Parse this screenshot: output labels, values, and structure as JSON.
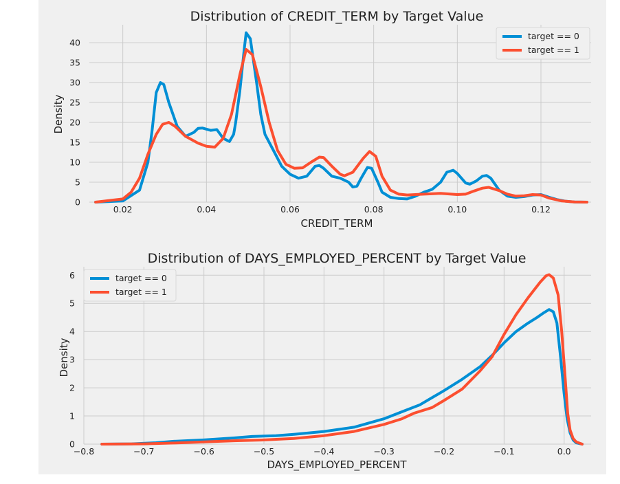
{
  "chart_data": [
    {
      "type": "line",
      "title": "Distribution of CREDIT_TERM by Target Value",
      "xlabel": "CREDIT_TERM",
      "ylabel": "Density",
      "xlim": [
        0.012,
        0.132
      ],
      "ylim": [
        0,
        44.5
      ],
      "xticks": [
        0.02,
        0.04,
        0.06,
        0.08,
        0.1,
        0.12
      ],
      "xtick_labels": [
        "0.02",
        "0.04",
        "0.06",
        "0.08",
        "0.10",
        "0.12"
      ],
      "yticks": [
        0,
        5,
        10,
        15,
        20,
        25,
        30,
        35,
        40
      ],
      "ytick_labels": [
        "0",
        "5",
        "10",
        "15",
        "20",
        "25",
        "30",
        "35",
        "40"
      ],
      "grid": true,
      "legend_position": "top-right",
      "series": [
        {
          "name": "target == 0",
          "color": "#008fd5",
          "points": [
            [
              0.0135,
              0
            ],
            [
              0.02,
              0.3
            ],
            [
              0.024,
              3
            ],
            [
              0.026,
              10
            ],
            [
              0.027,
              18
            ],
            [
              0.028,
              27.5
            ],
            [
              0.029,
              30
            ],
            [
              0.0298,
              29.5
            ],
            [
              0.031,
              25
            ],
            [
              0.033,
              19
            ],
            [
              0.035,
              16.5
            ],
            [
              0.037,
              17.5
            ],
            [
              0.038,
              18.5
            ],
            [
              0.039,
              18.6
            ],
            [
              0.041,
              18
            ],
            [
              0.0425,
              18.2
            ],
            [
              0.044,
              16
            ],
            [
              0.0455,
              15.2
            ],
            [
              0.0465,
              17
            ],
            [
              0.047,
              20
            ],
            [
              0.048,
              28
            ],
            [
              0.049,
              38
            ],
            [
              0.0495,
              42.5
            ],
            [
              0.0505,
              41
            ],
            [
              0.052,
              30
            ],
            [
              0.053,
              22
            ],
            [
              0.054,
              17
            ],
            [
              0.056,
              13
            ],
            [
              0.058,
              9
            ],
            [
              0.06,
              7
            ],
            [
              0.062,
              6
            ],
            [
              0.064,
              6.5
            ],
            [
              0.066,
              9
            ],
            [
              0.067,
              9.2
            ],
            [
              0.068,
              8.5
            ],
            [
              0.07,
              6.5
            ],
            [
              0.072,
              6
            ],
            [
              0.074,
              5
            ],
            [
              0.075,
              3.8
            ],
            [
              0.076,
              4
            ],
            [
              0.077,
              6
            ],
            [
              0.0785,
              8.7
            ],
            [
              0.0795,
              8.5
            ],
            [
              0.081,
              5
            ],
            [
              0.082,
              2.5
            ],
            [
              0.084,
              1.2
            ],
            [
              0.086,
              0.9
            ],
            [
              0.088,
              0.8
            ],
            [
              0.09,
              1.5
            ],
            [
              0.092,
              2.5
            ],
            [
              0.094,
              3.2
            ],
            [
              0.096,
              5
            ],
            [
              0.0975,
              7.5
            ],
            [
              0.099,
              8
            ],
            [
              0.1,
              7.2
            ],
            [
              0.102,
              4.8
            ],
            [
              0.103,
              4.5
            ],
            [
              0.1045,
              5.3
            ],
            [
              0.106,
              6.5
            ],
            [
              0.107,
              6.7
            ],
            [
              0.108,
              6
            ],
            [
              0.11,
              3
            ],
            [
              0.112,
              1.5
            ],
            [
              0.114,
              1.2
            ],
            [
              0.116,
              1.4
            ],
            [
              0.118,
              1.8
            ],
            [
              0.12,
              1.9
            ],
            [
              0.122,
              1.2
            ],
            [
              0.124,
              0.6
            ],
            [
              0.126,
              0.2
            ],
            [
              0.128,
              0.05
            ],
            [
              0.131,
              0
            ]
          ]
        },
        {
          "name": "target == 1",
          "color": "#fc4f30",
          "points": [
            [
              0.0135,
              0
            ],
            [
              0.02,
              0.8
            ],
            [
              0.022,
              2.5
            ],
            [
              0.024,
              6
            ],
            [
              0.026,
              12
            ],
            [
              0.028,
              17
            ],
            [
              0.0295,
              19.5
            ],
            [
              0.031,
              20
            ],
            [
              0.0325,
              19
            ],
            [
              0.035,
              16.5
            ],
            [
              0.038,
              14.8
            ],
            [
              0.04,
              14
            ],
            [
              0.042,
              13.8
            ],
            [
              0.044,
              16
            ],
            [
              0.046,
              22
            ],
            [
              0.048,
              32
            ],
            [
              0.0495,
              38.3
            ],
            [
              0.051,
              37
            ],
            [
              0.053,
              29
            ],
            [
              0.055,
              20
            ],
            [
              0.057,
              13
            ],
            [
              0.059,
              9.5
            ],
            [
              0.061,
              8.5
            ],
            [
              0.063,
              8.6
            ],
            [
              0.065,
              10
            ],
            [
              0.067,
              11.3
            ],
            [
              0.068,
              11.2
            ],
            [
              0.07,
              9
            ],
            [
              0.072,
              7
            ],
            [
              0.073,
              6.6
            ],
            [
              0.075,
              7.5
            ],
            [
              0.0775,
              11
            ],
            [
              0.079,
              12.7
            ],
            [
              0.0805,
              11.5
            ],
            [
              0.082,
              6.5
            ],
            [
              0.084,
              3
            ],
            [
              0.086,
              2
            ],
            [
              0.088,
              1.8
            ],
            [
              0.092,
              2
            ],
            [
              0.096,
              2.2
            ],
            [
              0.1,
              1.9
            ],
            [
              0.102,
              2
            ],
            [
              0.104,
              2.8
            ],
            [
              0.106,
              3.5
            ],
            [
              0.1075,
              3.7
            ],
            [
              0.11,
              2.9
            ],
            [
              0.112,
              2
            ],
            [
              0.114,
              1.5
            ],
            [
              0.116,
              1.6
            ],
            [
              0.118,
              1.9
            ],
            [
              0.12,
              1.8
            ],
            [
              0.122,
              1
            ],
            [
              0.125,
              0.3
            ],
            [
              0.128,
              0.05
            ],
            [
              0.131,
              0
            ]
          ]
        }
      ]
    },
    {
      "type": "line",
      "title": "Distribution of DAYS_EMPLOYED_PERCENT by Target Value",
      "xlabel": "DAYS_EMPLOYED_PERCENT",
      "ylabel": "Density",
      "xlim": [
        -0.8,
        0.045
      ],
      "ylim": [
        0,
        6.3
      ],
      "xticks": [
        -0.8,
        -0.7,
        -0.6,
        -0.5,
        -0.4,
        -0.3,
        -0.2,
        -0.1,
        0.0
      ],
      "xtick_labels": [
        "−0.8",
        "−0.7",
        "−0.6",
        "−0.5",
        "−0.4",
        "−0.3",
        "−0.2",
        "−0.1",
        "0.0"
      ],
      "yticks": [
        0,
        1,
        2,
        3,
        4,
        5,
        6
      ],
      "ytick_labels": [
        "0",
        "1",
        "2",
        "3",
        "4",
        "5",
        "6"
      ],
      "grid": true,
      "legend_position": "top-left",
      "series": [
        {
          "name": "target == 0",
          "color": "#008fd5",
          "points": [
            [
              -0.77,
              0
            ],
            [
              -0.72,
              0.01
            ],
            [
              -0.68,
              0.05
            ],
            [
              -0.65,
              0.1
            ],
            [
              -0.6,
              0.15
            ],
            [
              -0.55,
              0.22
            ],
            [
              -0.52,
              0.27
            ],
            [
              -0.48,
              0.3
            ],
            [
              -0.45,
              0.35
            ],
            [
              -0.4,
              0.45
            ],
            [
              -0.35,
              0.6
            ],
            [
              -0.3,
              0.9
            ],
            [
              -0.27,
              1.15
            ],
            [
              -0.24,
              1.4
            ],
            [
              -0.22,
              1.65
            ],
            [
              -0.2,
              1.9
            ],
            [
              -0.17,
              2.3
            ],
            [
              -0.14,
              2.75
            ],
            [
              -0.12,
              3.15
            ],
            [
              -0.1,
              3.6
            ],
            [
              -0.08,
              4.0
            ],
            [
              -0.06,
              4.3
            ],
            [
              -0.045,
              4.5
            ],
            [
              -0.035,
              4.65
            ],
            [
              -0.025,
              4.78
            ],
            [
              -0.018,
              4.7
            ],
            [
              -0.012,
              4.3
            ],
            [
              -0.006,
              3.1
            ],
            [
              0,
              1.8
            ],
            [
              0.005,
              0.9
            ],
            [
              0.01,
              0.4
            ],
            [
              0.015,
              0.15
            ],
            [
              0.02,
              0.05
            ],
            [
              0.03,
              0
            ]
          ]
        },
        {
          "name": "target == 1",
          "color": "#fc4f30",
          "points": [
            [
              -0.77,
              0
            ],
            [
              -0.7,
              0.01
            ],
            [
              -0.65,
              0.04
            ],
            [
              -0.6,
              0.08
            ],
            [
              -0.55,
              0.12
            ],
            [
              -0.5,
              0.15
            ],
            [
              -0.45,
              0.2
            ],
            [
              -0.4,
              0.3
            ],
            [
              -0.35,
              0.45
            ],
            [
              -0.3,
              0.7
            ],
            [
              -0.27,
              0.9
            ],
            [
              -0.25,
              1.1
            ],
            [
              -0.22,
              1.3
            ],
            [
              -0.2,
              1.55
            ],
            [
              -0.17,
              1.95
            ],
            [
              -0.14,
              2.6
            ],
            [
              -0.12,
              3.1
            ],
            [
              -0.1,
              3.9
            ],
            [
              -0.08,
              4.6
            ],
            [
              -0.06,
              5.2
            ],
            [
              -0.04,
              5.75
            ],
            [
              -0.03,
              5.98
            ],
            [
              -0.025,
              6.02
            ],
            [
              -0.018,
              5.9
            ],
            [
              -0.01,
              5.3
            ],
            [
              -0.004,
              4.0
            ],
            [
              0.002,
              2.3
            ],
            [
              0.006,
              1.1
            ],
            [
              0.01,
              0.5
            ],
            [
              0.015,
              0.2
            ],
            [
              0.02,
              0.08
            ],
            [
              0.03,
              0
            ]
          ]
        }
      ]
    }
  ]
}
